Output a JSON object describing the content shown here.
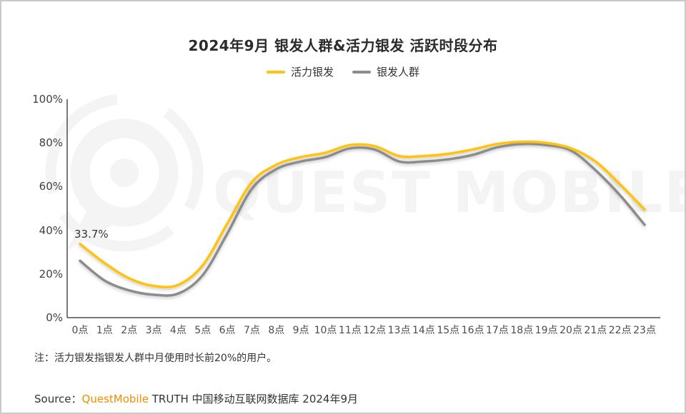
{
  "page": {
    "title": "2024年9月 银发人群&活力银发 活跃时段分布",
    "note": "注：活力银发指银发人群中月使用时长前20%的用户。",
    "source": {
      "prefix": "Source：",
      "brand": "QuestMobile",
      "suffix": " TRUTH 中国移动互联网数据库 2024年9月"
    },
    "watermark_text": "QUEST MOBILE"
  },
  "legend": [
    {
      "label": "活力银发",
      "color": "#FFC20E"
    },
    {
      "label": "银发人群",
      "color": "#8C8C8C"
    }
  ],
  "annotation": {
    "text": "33.7%"
  },
  "colors": {
    "accent_yellow": "#FFC20E",
    "series_gray": "#8C8C8C",
    "brand_orange": "#F28D00",
    "axis": "#4D4D4D",
    "watermark": "#F4F4F4"
  },
  "chart_data": {
    "type": "line",
    "title": "2024年9月 银发人群&活力银发 活跃时段分布",
    "xlabel": "",
    "ylabel": "",
    "ylim": [
      0,
      100
    ],
    "grid": false,
    "legend_position": "top",
    "y_ticks": [
      "0%",
      "20%",
      "40%",
      "60%",
      "80%",
      "100%"
    ],
    "categories": [
      "0点",
      "1点",
      "2点",
      "3点",
      "4点",
      "5点",
      "6点",
      "7点",
      "8点",
      "9点",
      "10点",
      "11点",
      "12点",
      "13点",
      "14点",
      "15点",
      "16点",
      "17点",
      "18点",
      "19点",
      "20点",
      "21点",
      "22点",
      "23点"
    ],
    "series": [
      {
        "name": "活力银发",
        "color": "#FFC20E",
        "values": [
          33.7,
          25,
          18,
          14.5,
          15,
          24,
          43,
          62,
          70,
          73.5,
          75.5,
          79,
          78.5,
          74,
          74,
          75,
          77,
          79.5,
          80.5,
          80,
          77.5,
          71.5,
          61,
          49.5
        ]
      },
      {
        "name": "银发人群",
        "color": "#8C8C8C",
        "values": [
          26,
          17,
          12.5,
          10.5,
          11,
          19.5,
          38.5,
          59,
          68,
          71.5,
          73.5,
          77.5,
          77,
          71.5,
          71.5,
          72.5,
          74.5,
          78,
          79.5,
          79,
          76.5,
          67.5,
          56,
          42.5
        ]
      }
    ],
    "annotations": [
      {
        "series": "活力银发",
        "category": "0点",
        "text": "33.7%"
      }
    ]
  }
}
